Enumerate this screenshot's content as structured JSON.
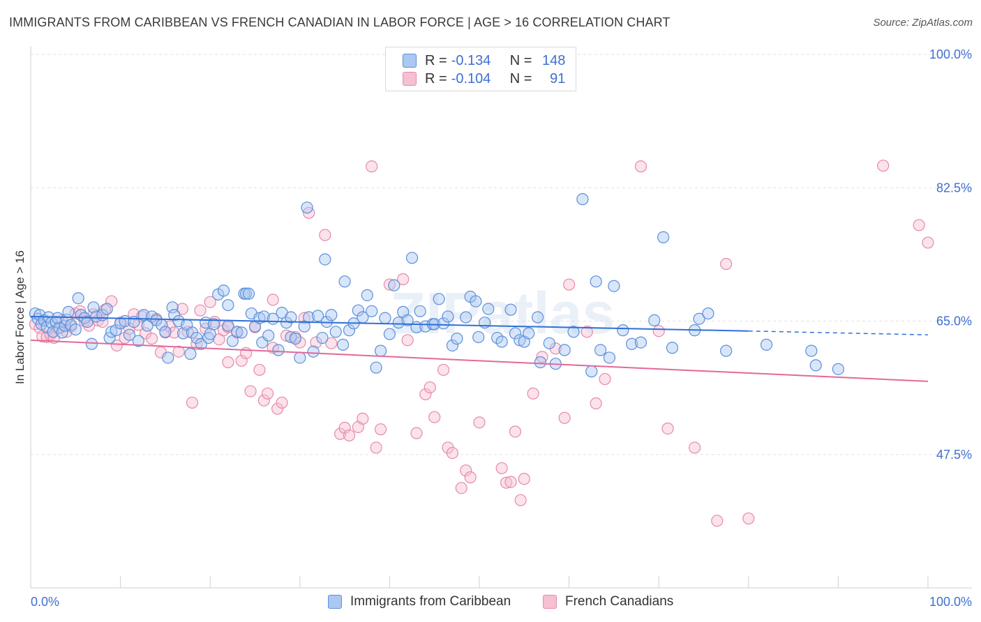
{
  "title": "IMMIGRANTS FROM CARIBBEAN VS FRENCH CANADIAN IN LABOR FORCE | AGE > 16 CORRELATION CHART",
  "source": "Source: ZipAtlas.com",
  "watermark": "ZIPatlas",
  "legend": {
    "rows": [
      {
        "r_label": "R =",
        "r_value": "-0.134",
        "n_label": "N =",
        "n_value": "148"
      },
      {
        "r_label": "R =",
        "r_value": "-0.104",
        "n_label": "N =",
        "n_value": "91"
      }
    ]
  },
  "colors": {
    "blue_fill": "#aac8f2",
    "blue_stroke": "#5b8fd9",
    "blue_line": "#2f6fd6",
    "pink_fill": "#f7bfd2",
    "pink_stroke": "#e58aaa",
    "pink_line": "#e4689a",
    "axis_label": "#3f6fcf"
  },
  "chart_data": {
    "type": "scatter",
    "ylabel": "In Labor Force | Age > 16",
    "xlabel": "",
    "xlim": [
      0,
      100
    ],
    "ylim": [
      30,
      100
    ],
    "y_ticks": [
      {
        "value": 100,
        "label": "100.0%"
      },
      {
        "value": 82.5,
        "label": "82.5%"
      },
      {
        "value": 65,
        "label": "65.0%"
      },
      {
        "value": 47.5,
        "label": "47.5%"
      }
    ],
    "x_tick_labels": {
      "left": "0.0%",
      "right": "100.0%"
    },
    "x_minor_ticks": [
      10,
      20,
      30,
      40,
      50,
      60,
      70,
      80,
      90,
      100
    ],
    "grid": "dashed horizontal",
    "series": [
      {
        "name": "Immigrants from Caribbean",
        "trend": {
          "x0": 0,
          "y0": 65.6,
          "x1": 80,
          "y1": 63.7,
          "dash_to": 100,
          "dash_y": 63.2
        },
        "points": [
          [
            0.5,
            66
          ],
          [
            0.8,
            65.3
          ],
          [
            1,
            65.8
          ],
          [
            1.2,
            64.6
          ],
          [
            1.5,
            65.1
          ],
          [
            1.8,
            64.2
          ],
          [
            2,
            65.5
          ],
          [
            2.3,
            64.8
          ],
          [
            2.5,
            63.6
          ],
          [
            2.8,
            64.9
          ],
          [
            3,
            65.4
          ],
          [
            3.2,
            64.1
          ],
          [
            3.5,
            63.5
          ],
          [
            3.8,
            64.4
          ],
          [
            4,
            65.2
          ],
          [
            4.2,
            66.2
          ],
          [
            4.5,
            64.5
          ],
          [
            5,
            63.9
          ],
          [
            5.3,
            68
          ],
          [
            5.6,
            65.8
          ],
          [
            6,
            65.4
          ],
          [
            6.3,
            64.9
          ],
          [
            6.8,
            62
          ],
          [
            7,
            66.8
          ],
          [
            7.3,
            65.6
          ],
          [
            8,
            65.8
          ],
          [
            8.5,
            66.6
          ],
          [
            8.8,
            62.8
          ],
          [
            9,
            63.6
          ],
          [
            9.5,
            63.8
          ],
          [
            10,
            64.7
          ],
          [
            10.5,
            65
          ],
          [
            11,
            63.2
          ],
          [
            11.5,
            64.9
          ],
          [
            12,
            62.4
          ],
          [
            12.6,
            65.8
          ],
          [
            13,
            64.4
          ],
          [
            13.5,
            65.6
          ],
          [
            14,
            65.1
          ],
          [
            14.6,
            64.5
          ],
          [
            15,
            63.6
          ],
          [
            15.3,
            60.2
          ],
          [
            15.8,
            66.8
          ],
          [
            16,
            65.8
          ],
          [
            16.5,
            65
          ],
          [
            17,
            63.4
          ],
          [
            17.4,
            64.5
          ],
          [
            17.8,
            60.7
          ],
          [
            18,
            63.5
          ],
          [
            18.5,
            62.8
          ],
          [
            19,
            62
          ],
          [
            19.5,
            64.8
          ],
          [
            19.8,
            62.8
          ],
          [
            20,
            63.3
          ],
          [
            20.4,
            64.6
          ],
          [
            20.9,
            68.5
          ],
          [
            21.5,
            69
          ],
          [
            22,
            67.1
          ],
          [
            22,
            64.4
          ],
          [
            22.5,
            62.4
          ],
          [
            23,
            63.6
          ],
          [
            23.5,
            63.5
          ],
          [
            23.8,
            68.6
          ],
          [
            24,
            68.6
          ],
          [
            24.3,
            68.6
          ],
          [
            24.6,
            66
          ],
          [
            25,
            64.3
          ],
          [
            25.5,
            65.4
          ],
          [
            25.8,
            62.2
          ],
          [
            26,
            65.6
          ],
          [
            26.5,
            63.1
          ],
          [
            27,
            65.3
          ],
          [
            27.6,
            61.2
          ],
          [
            28,
            66.1
          ],
          [
            28.5,
            64.8
          ],
          [
            29,
            65.5
          ],
          [
            29,
            62.9
          ],
          [
            29.5,
            62.7
          ],
          [
            30,
            60.2
          ],
          [
            30.5,
            64.3
          ],
          [
            30.8,
            79.9
          ],
          [
            31,
            65.5
          ],
          [
            31.5,
            61
          ],
          [
            32,
            65.7
          ],
          [
            32.5,
            62.8
          ],
          [
            32.8,
            73.1
          ],
          [
            33,
            64.9
          ],
          [
            33.5,
            65.8
          ],
          [
            34,
            63.6
          ],
          [
            34.8,
            61.9
          ],
          [
            35,
            70.2
          ],
          [
            35.5,
            63.8
          ],
          [
            36,
            64.7
          ],
          [
            36.5,
            66.4
          ],
          [
            37,
            65.5
          ],
          [
            37.5,
            68.4
          ],
          [
            38,
            66.3
          ],
          [
            38.5,
            58.9
          ],
          [
            39,
            61.1
          ],
          [
            39.5,
            65.4
          ],
          [
            40,
            63.3
          ],
          [
            40.5,
            69.7
          ],
          [
            41,
            64.8
          ],
          [
            41.5,
            66.2
          ],
          [
            42,
            65.1
          ],
          [
            42.5,
            73.3
          ],
          [
            43,
            64.2
          ],
          [
            43.4,
            66.3
          ],
          [
            44,
            64.3
          ],
          [
            44.8,
            64.6
          ],
          [
            45,
            64.6
          ],
          [
            45.5,
            67.9
          ],
          [
            46,
            64.7
          ],
          [
            46.5,
            65.6
          ],
          [
            47,
            61.8
          ],
          [
            47.5,
            62.7
          ],
          [
            48.5,
            65.5
          ],
          [
            49,
            68.2
          ],
          [
            49.6,
            67.6
          ],
          [
            49.9,
            62.9
          ],
          [
            50.6,
            64.8
          ],
          [
            51,
            66.6
          ],
          [
            52,
            62.8
          ],
          [
            52.5,
            62.3
          ],
          [
            53.5,
            66.5
          ],
          [
            54,
            63.4
          ],
          [
            54.5,
            62.5
          ],
          [
            55,
            62.3
          ],
          [
            55.5,
            63.4
          ],
          [
            56.5,
            65.5
          ],
          [
            56.8,
            59.6
          ],
          [
            57.8,
            62.1
          ],
          [
            58.5,
            59.4
          ],
          [
            59.5,
            61.2
          ],
          [
            60.5,
            63.6
          ],
          [
            61.5,
            81
          ],
          [
            62.5,
            58.4
          ],
          [
            63,
            70.2
          ],
          [
            63.5,
            61.2
          ],
          [
            64.5,
            60.2
          ],
          [
            65,
            69.6
          ],
          [
            66,
            63.8
          ],
          [
            67,
            62
          ],
          [
            68,
            62.2
          ],
          [
            69.5,
            65.1
          ],
          [
            70.5,
            76
          ],
          [
            71.5,
            61.5
          ],
          [
            74,
            63.8
          ],
          [
            74.5,
            65.3
          ],
          [
            75.5,
            66
          ],
          [
            77.5,
            61.1
          ],
          [
            82,
            61.9
          ],
          [
            87,
            61.1
          ],
          [
            87.5,
            59.2
          ],
          [
            90,
            58.7
          ]
        ]
      },
      {
        "name": "French Canadians",
        "trend": {
          "x0": 0,
          "y0": 62.5,
          "x1": 100,
          "y1": 57.1
        },
        "points": [
          [
            0.5,
            64.6
          ],
          [
            1,
            64.1
          ],
          [
            1.3,
            63
          ],
          [
            1.8,
            62.9
          ],
          [
            2.2,
            63.2
          ],
          [
            2.6,
            62.8
          ],
          [
            3,
            64.1
          ],
          [
            3.5,
            65.1
          ],
          [
            4,
            63.6
          ],
          [
            4.5,
            64.3
          ],
          [
            5,
            66
          ],
          [
            5.5,
            66.3
          ],
          [
            6,
            65
          ],
          [
            6.5,
            64.4
          ],
          [
            7,
            65.9
          ],
          [
            7.5,
            65.1
          ],
          [
            8,
            64.9
          ],
          [
            8.3,
            66.5
          ],
          [
            9,
            67.6
          ],
          [
            9.6,
            61.8
          ],
          [
            10,
            64.8
          ],
          [
            10.5,
            62.8
          ],
          [
            11,
            64
          ],
          [
            11.5,
            65.9
          ],
          [
            12,
            64.5
          ],
          [
            12.4,
            65.6
          ],
          [
            12.8,
            63.4
          ],
          [
            13.5,
            62.7
          ],
          [
            14,
            65.3
          ],
          [
            14.5,
            60.9
          ],
          [
            15,
            63.5
          ],
          [
            15.5,
            64.3
          ],
          [
            16,
            63.5
          ],
          [
            16.5,
            61
          ],
          [
            16.9,
            66.6
          ],
          [
            17.5,
            63.6
          ],
          [
            18,
            54.3
          ],
          [
            18.5,
            62
          ],
          [
            18.9,
            66.4
          ],
          [
            19.5,
            64
          ],
          [
            20,
            67.5
          ],
          [
            20.5,
            64.9
          ],
          [
            21,
            62.6
          ],
          [
            21.5,
            63.8
          ],
          [
            22,
            59.6
          ],
          [
            22,
            64.2
          ],
          [
            23,
            63.5
          ],
          [
            23.5,
            59.8
          ],
          [
            24,
            60.8
          ],
          [
            24.5,
            55.8
          ],
          [
            25,
            64.2
          ],
          [
            25.5,
            58.6
          ],
          [
            26,
            54.6
          ],
          [
            26.4,
            55.5
          ],
          [
            27,
            61.5
          ],
          [
            27,
            67.8
          ],
          [
            27.5,
            53.5
          ],
          [
            28,
            54.3
          ],
          [
            28.5,
            63.1
          ],
          [
            29.5,
            62.9
          ],
          [
            30,
            62.2
          ],
          [
            30.5,
            65.4
          ],
          [
            31,
            79.2
          ],
          [
            31.8,
            62.2
          ],
          [
            32.8,
            76.3
          ],
          [
            33.5,
            62.1
          ],
          [
            34.5,
            50.2
          ],
          [
            35,
            51
          ],
          [
            35.5,
            50
          ],
          [
            36.5,
            51.1
          ],
          [
            37,
            52.2
          ],
          [
            38,
            85.3
          ],
          [
            38.5,
            48.4
          ],
          [
            39,
            50.8
          ],
          [
            40,
            69.8
          ],
          [
            41.5,
            70.5
          ],
          [
            42,
            62.5
          ],
          [
            43,
            50.3
          ],
          [
            44,
            55.4
          ],
          [
            44.5,
            56.3
          ],
          [
            45,
            52.4
          ],
          [
            46,
            58.6
          ],
          [
            46.5,
            48.4
          ],
          [
            47,
            47.7
          ],
          [
            48,
            43.1
          ],
          [
            48.5,
            45.4
          ],
          [
            49,
            44.5
          ],
          [
            50,
            51.7
          ],
          [
            52.5,
            45.7
          ],
          [
            53,
            43.8
          ],
          [
            53.5,
            43.9
          ],
          [
            54,
            50.5
          ],
          [
            54.6,
            41.5
          ],
          [
            55,
            44.3
          ],
          [
            56,
            55.5
          ],
          [
            57,
            60.3
          ],
          [
            58.5,
            61.4
          ],
          [
            59.5,
            52.3
          ],
          [
            60,
            69.8
          ],
          [
            62,
            63.6
          ],
          [
            63,
            54.2
          ],
          [
            64,
            57.4
          ],
          [
            68,
            85.3
          ],
          [
            70,
            63.7
          ],
          [
            71,
            50.9
          ],
          [
            74,
            48.4
          ],
          [
            76.5,
            38.8
          ],
          [
            77.5,
            72.5
          ],
          [
            80,
            39.1
          ],
          [
            95,
            85.4
          ],
          [
            99,
            77.6
          ],
          [
            100,
            75.3
          ]
        ]
      }
    ]
  },
  "bottom_legend": [
    "Immigrants from Caribbean",
    "French Canadians"
  ]
}
